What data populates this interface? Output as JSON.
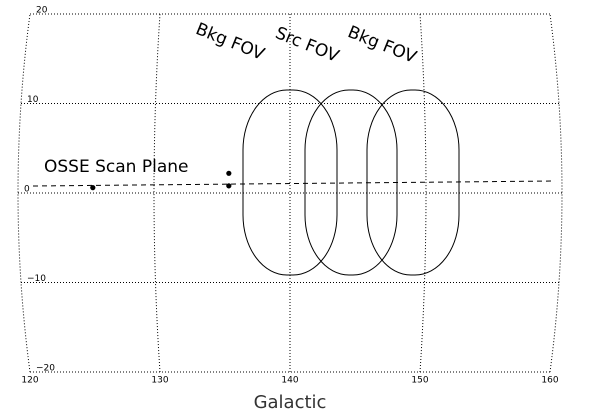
{
  "chart_data": {
    "type": "scatter",
    "x_label": "Galactic",
    "x": [
      135.5,
      135.5,
      125.5
    ],
    "values": [
      2.2,
      0.8,
      0.6
    ],
    "color": "#000000",
    "xlim": [
      160,
      120
    ],
    "xticks": [
      160,
      150,
      140,
      130,
      120
    ],
    "ylim": [
      -20,
      20
    ],
    "yticks": [
      {
        "value": -20,
        "label": "−20"
      },
      {
        "value": -10,
        "label": "−10"
      },
      0,
      10,
      20
    ],
    "grid": true,
    "annotations": [
      "Bkg FOV",
      "Src FOV",
      "Bkg FOV",
      "OSSE Scan Plane"
    ]
  }
}
